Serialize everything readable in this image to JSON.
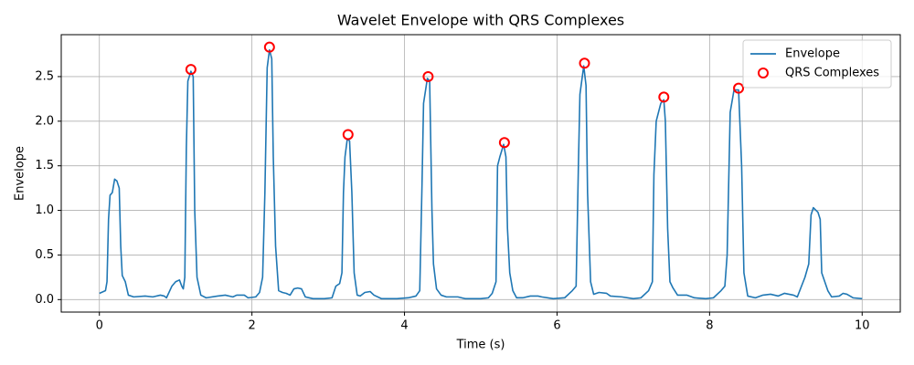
{
  "chart_data": {
    "type": "line",
    "title": "Wavelet Envelope with QRS Complexes",
    "xlabel": "Time (s)",
    "ylabel": "Envelope",
    "xlim": [
      -0.5,
      10.5
    ],
    "ylim": [
      -0.14,
      2.97
    ],
    "xticks": [
      0,
      2,
      4,
      6,
      8,
      10
    ],
    "yticks": [
      {
        "value": 0,
        "label": "0.0"
      },
      {
        "value": 0.5,
        "label": "0.5"
      },
      {
        "value": 1,
        "label": "1.0"
      },
      {
        "value": 1.5,
        "label": "1.5"
      },
      {
        "value": 2,
        "label": "2.0"
      },
      {
        "value": 2.5,
        "label": "2.5"
      }
    ],
    "grid": true,
    "legend": "upper right",
    "series": [
      {
        "name": "Envelope",
        "type": "line",
        "color": "#1f77b4",
        "x": [
          0,
          0.08,
          0.1,
          0.12,
          0.14,
          0.17,
          0.2,
          0.23,
          0.26,
          0.28,
          0.3,
          0.34,
          0.38,
          0.45,
          0.6,
          0.7,
          0.8,
          0.85,
          0.88,
          0.95,
          1.0,
          1.05,
          1.08,
          1.1,
          1.12,
          1.14,
          1.16,
          1.2,
          1.23,
          1.25,
          1.28,
          1.33,
          1.4,
          1.55,
          1.65,
          1.75,
          1.8,
          1.9,
          1.95,
          2.05,
          2.1,
          2.14,
          2.17,
          2.2,
          2.23,
          2.26,
          2.28,
          2.31,
          2.35,
          2.4,
          2.45,
          2.5,
          2.55,
          2.6,
          2.65,
          2.7,
          2.8,
          2.95,
          3.05,
          3.1,
          3.15,
          3.18,
          3.2,
          3.22,
          3.25,
          3.28,
          3.31,
          3.34,
          3.38,
          3.42,
          3.48,
          3.55,
          3.6,
          3.7,
          3.9,
          4.05,
          4.15,
          4.2,
          4.23,
          4.25,
          4.3,
          4.33,
          4.36,
          4.38,
          4.42,
          4.48,
          4.55,
          4.7,
          4.8,
          5.0,
          5.1,
          5.15,
          5.2,
          5.22,
          5.25,
          5.3,
          5.33,
          5.35,
          5.38,
          5.42,
          5.47,
          5.55,
          5.65,
          5.75,
          5.8,
          5.95,
          6.1,
          6.2,
          6.25,
          6.28,
          6.3,
          6.35,
          6.38,
          6.4,
          6.44,
          6.48,
          6.55,
          6.65,
          6.7,
          6.85,
          7.0,
          7.1,
          7.2,
          7.25,
          7.27,
          7.3,
          7.36,
          7.4,
          7.42,
          7.45,
          7.48,
          7.52,
          7.58,
          7.7,
          7.8,
          7.95,
          8.05,
          8.15,
          8.2,
          8.23,
          8.27,
          8.32,
          8.38,
          8.42,
          8.45,
          8.5,
          8.6,
          8.7,
          8.8,
          8.9,
          8.98,
          9.1,
          9.15,
          9.25,
          9.3,
          9.33,
          9.36,
          9.42,
          9.45,
          9.47,
          9.55,
          9.6,
          9.7,
          9.75,
          9.8,
          9.88,
          10.0
        ],
        "values": [
          0.07,
          0.1,
          0.2,
          0.9,
          1.17,
          1.2,
          1.35,
          1.33,
          1.25,
          0.6,
          0.27,
          0.2,
          0.05,
          0.03,
          0.04,
          0.03,
          0.05,
          0.04,
          0.02,
          0.15,
          0.2,
          0.22,
          0.15,
          0.12,
          0.25,
          1.7,
          2.45,
          2.56,
          2.5,
          1.0,
          0.25,
          0.05,
          0.02,
          0.04,
          0.05,
          0.03,
          0.05,
          0.05,
          0.02,
          0.03,
          0.08,
          0.25,
          1.2,
          2.6,
          2.8,
          2.7,
          1.6,
          0.6,
          0.1,
          0.08,
          0.07,
          0.05,
          0.12,
          0.13,
          0.12,
          0.03,
          0.01,
          0.01,
          0.02,
          0.15,
          0.18,
          0.3,
          1.2,
          1.6,
          1.8,
          1.78,
          1.2,
          0.3,
          0.05,
          0.04,
          0.08,
          0.09,
          0.05,
          0.01,
          0.01,
          0.02,
          0.04,
          0.1,
          1.3,
          2.2,
          2.48,
          2.45,
          1.0,
          0.4,
          0.12,
          0.05,
          0.03,
          0.03,
          0.01,
          0.01,
          0.02,
          0.07,
          0.2,
          1.5,
          1.6,
          1.74,
          1.6,
          0.8,
          0.3,
          0.1,
          0.02,
          0.02,
          0.04,
          0.04,
          0.03,
          0.01,
          0.02,
          0.1,
          0.15,
          1.5,
          2.3,
          2.62,
          2.4,
          1.2,
          0.2,
          0.06,
          0.08,
          0.07,
          0.04,
          0.03,
          0.01,
          0.02,
          0.1,
          0.2,
          1.4,
          2.0,
          2.2,
          2.24,
          2.0,
          0.8,
          0.2,
          0.13,
          0.05,
          0.05,
          0.02,
          0.01,
          0.02,
          0.1,
          0.15,
          0.5,
          2.1,
          2.35,
          2.35,
          1.5,
          0.3,
          0.04,
          0.02,
          0.05,
          0.06,
          0.04,
          0.07,
          0.05,
          0.03,
          0.25,
          0.4,
          0.95,
          1.03,
          0.98,
          0.9,
          0.3,
          0.1,
          0.03,
          0.04,
          0.07,
          0.06,
          0.02,
          0.01
        ]
      },
      {
        "name": "QRS Complexes",
        "type": "scatter",
        "color": "#ff0000",
        "x": [
          1.2,
          2.23,
          3.26,
          4.31,
          5.31,
          6.36,
          7.4,
          8.38
        ],
        "values": [
          2.58,
          2.83,
          1.85,
          2.5,
          1.76,
          2.65,
          2.27,
          2.37
        ]
      }
    ]
  }
}
